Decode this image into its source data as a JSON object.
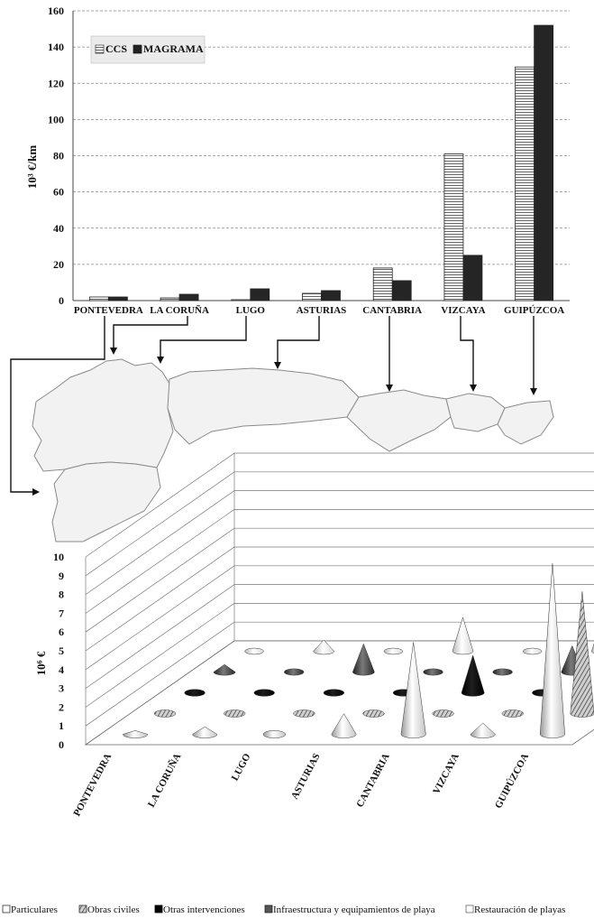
{
  "chart_data": [
    {
      "type": "bar",
      "ylabel": "10³ €/km",
      "ylim": [
        0,
        160
      ],
      "yticks": [
        0,
        20,
        40,
        60,
        80,
        100,
        120,
        140,
        160
      ],
      "grid": true,
      "legend_position": "top-left",
      "categories": [
        "PONTEVEDRA",
        "LA CORUÑA",
        "LUGO",
        "ASTURIAS",
        "CANTABRIA",
        "VIZCAYA",
        "GUIPÚZCOA"
      ],
      "series": [
        {
          "name": "CCS",
          "values": [
            2,
            1.5,
            0.5,
            4,
            18,
            81,
            129
          ]
        },
        {
          "name": "MAGRAMA",
          "values": [
            2,
            3.5,
            6.5,
            5.5,
            11,
            25,
            152
          ]
        }
      ]
    },
    {
      "type": "bar3d_cone",
      "ylabel": "10⁶ €",
      "zlim": [
        0,
        10
      ],
      "zticks": [
        0,
        1,
        2,
        3,
        4,
        5,
        6,
        7,
        8,
        9,
        10
      ],
      "grid": true,
      "legend_position": "bottom",
      "categories": [
        "PONTEVEDRA",
        "LA CORUÑA",
        "LUGO",
        "ASTURIAS",
        "CANTABRIA",
        "VIZCAYA",
        "GUIPÚZCOA"
      ],
      "series": [
        {
          "name": "Particulares",
          "values": [
            0.2,
            0.4,
            0,
            1.1,
            4.9,
            0.6,
            9.1
          ]
        },
        {
          "name": "Obras civiles",
          "values": [
            0,
            0,
            0,
            0,
            0,
            0,
            6.5
          ]
        },
        {
          "name": "Otras intervenciones",
          "values": [
            0,
            0,
            0,
            0,
            2.0,
            0,
            3.6
          ]
        },
        {
          "name": "Infraestructura y equipamientos de playa",
          "values": [
            0.4,
            0,
            1.5,
            0,
            0,
            1.4,
            1.7
          ]
        },
        {
          "name": "Restauración de playas",
          "values": [
            0,
            0.6,
            0,
            1.8,
            0,
            1.7,
            2.9
          ]
        }
      ]
    }
  ]
}
